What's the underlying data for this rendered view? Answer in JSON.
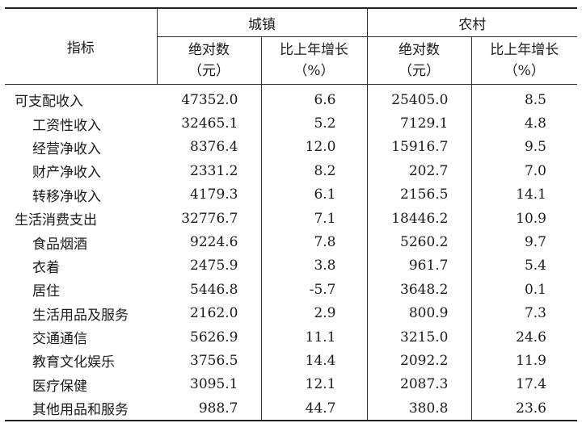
{
  "header": {
    "indicator": "指标",
    "urban": "城镇",
    "rural": "农村",
    "abs_label": "绝对数",
    "abs_unit": "（元）",
    "growth_label": "比上年增长",
    "growth_unit": "（%）"
  },
  "rows": [
    {
      "name": "可支配收入",
      "sub": false,
      "u_abs": "47352.0",
      "u_pct": "6.6",
      "r_abs": "25405.0",
      "r_pct": "8.5"
    },
    {
      "name": "工资性收入",
      "sub": true,
      "u_abs": "32465.1",
      "u_pct": "5.2",
      "r_abs": "7129.1",
      "r_pct": "4.8"
    },
    {
      "name": "经营净收入",
      "sub": true,
      "u_abs": "8376.4",
      "u_pct": "12.0",
      "r_abs": "15916.7",
      "r_pct": "9.5"
    },
    {
      "name": "财产净收入",
      "sub": true,
      "u_abs": "2331.2",
      "u_pct": "8.2",
      "r_abs": "202.7",
      "r_pct": "7.0"
    },
    {
      "name": "转移净收入",
      "sub": true,
      "u_abs": "4179.3",
      "u_pct": "6.1",
      "r_abs": "2156.5",
      "r_pct": "14.1"
    },
    {
      "name": "生活消费支出",
      "sub": false,
      "u_abs": "32776.7",
      "u_pct": "7.1",
      "r_abs": "18446.2",
      "r_pct": "10.9"
    },
    {
      "name": "食品烟酒",
      "sub": true,
      "u_abs": "9224.6",
      "u_pct": "7.8",
      "r_abs": "5260.2",
      "r_pct": "9.7"
    },
    {
      "name": "衣着",
      "sub": true,
      "u_abs": "2475.9",
      "u_pct": "3.8",
      "r_abs": "961.7",
      "r_pct": "5.4"
    },
    {
      "name": "居住",
      "sub": true,
      "u_abs": "5446.8",
      "u_pct": "-5.7",
      "r_abs": "3648.2",
      "r_pct": "0.1"
    },
    {
      "name": "生活用品及服务",
      "sub": true,
      "u_abs": "2162.0",
      "u_pct": "2.9",
      "r_abs": "800.9",
      "r_pct": "7.3"
    },
    {
      "name": "交通通信",
      "sub": true,
      "u_abs": "5626.9",
      "u_pct": "11.1",
      "r_abs": "3215.0",
      "r_pct": "24.6"
    },
    {
      "name": "教育文化娱乐",
      "sub": true,
      "u_abs": "3756.5",
      "u_pct": "14.4",
      "r_abs": "2092.2",
      "r_pct": "11.9"
    },
    {
      "name": "医疗保健",
      "sub": true,
      "u_abs": "3095.1",
      "u_pct": "12.1",
      "r_abs": "2087.3",
      "r_pct": "17.4"
    },
    {
      "name": "其他用品和服务",
      "sub": true,
      "u_abs": "988.7",
      "u_pct": "44.7",
      "r_abs": "380.8",
      "r_pct": "23.6"
    }
  ]
}
